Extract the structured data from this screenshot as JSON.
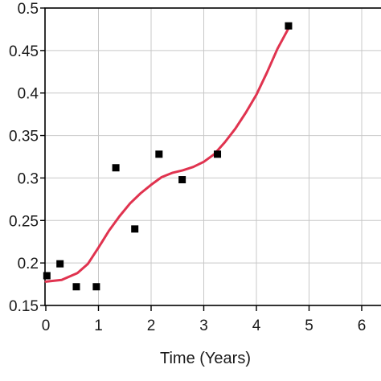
{
  "chart_data": {
    "type": "scatter",
    "xlabel": "Time (Years)",
    "ylabel": "",
    "xlim": [
      0,
      6.3
    ],
    "ylim": [
      0.15,
      0.5
    ],
    "x_ticks": [
      0,
      1,
      2,
      3,
      4,
      5,
      6
    ],
    "x_tick_labels": [
      "0",
      "1",
      "2",
      "3",
      "4",
      "5",
      "6"
    ],
    "y_ticks": [
      0.15,
      0.2,
      0.25,
      0.3,
      0.35,
      0.4,
      0.45,
      0.5
    ],
    "y_tick_labels": [
      "0.15",
      "0.2",
      "0.25",
      "0.3",
      "0.35",
      "0.4",
      "0.45",
      "0.5"
    ],
    "grid": true,
    "series": [
      {
        "kind": "points",
        "marker": "square",
        "color": "#000000",
        "x": [
          0.02,
          0.27,
          0.58,
          0.96,
          1.33,
          1.69,
          2.15,
          2.59,
          3.26,
          4.61
        ],
        "y": [
          0.185,
          0.199,
          0.172,
          0.172,
          0.312,
          0.24,
          0.328,
          0.298,
          0.328,
          0.479
        ]
      },
      {
        "kind": "line",
        "color": "#e0334f",
        "x": [
          0.0,
          0.3,
          0.6,
          0.8,
          1.0,
          1.2,
          1.4,
          1.6,
          1.8,
          2.0,
          2.2,
          2.4,
          2.6,
          2.8,
          3.0,
          3.2,
          3.4,
          3.6,
          3.8,
          4.0,
          4.2,
          4.4,
          4.6
        ],
        "y": [
          0.178,
          0.18,
          0.188,
          0.199,
          0.218,
          0.238,
          0.255,
          0.27,
          0.282,
          0.292,
          0.301,
          0.306,
          0.309,
          0.313,
          0.319,
          0.328,
          0.342,
          0.358,
          0.377,
          0.398,
          0.424,
          0.452,
          0.475
        ]
      }
    ]
  }
}
